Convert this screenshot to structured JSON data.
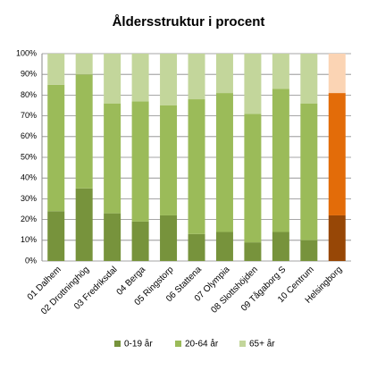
{
  "chart_data": {
    "type": "stacked-bar",
    "title": "Åldersstruktur i procent",
    "categories": [
      "01 Dalhem",
      "02 Drottninghög",
      "03 Fredriksdal",
      "04 Berga",
      "05 Ringstorp",
      "06 Stattena",
      "07 Olympia",
      "08 Slottshöjden",
      "09 Tågaborg S",
      "10 Centrum",
      "Helsingborg"
    ],
    "series": [
      {
        "name": "0-19 år",
        "color": "#77933c",
        "point_colors": [
          "#77933c",
          "#77933c",
          "#77933c",
          "#77933c",
          "#77933c",
          "#77933c",
          "#77933c",
          "#77933c",
          "#77933c",
          "#77933c",
          "#974706"
        ],
        "values": [
          24,
          35,
          23,
          19,
          22,
          13,
          14,
          9,
          14,
          10,
          22
        ]
      },
      {
        "name": "20-64 år",
        "color": "#9bbb59",
        "point_colors": [
          "#9bbb59",
          "#9bbb59",
          "#9bbb59",
          "#9bbb59",
          "#9bbb59",
          "#9bbb59",
          "#9bbb59",
          "#9bbb59",
          "#9bbb59",
          "#9bbb59",
          "#e36c09"
        ],
        "values": [
          61,
          55,
          53,
          58,
          53,
          65,
          67,
          62,
          69,
          66,
          59
        ]
      },
      {
        "name": "65+ år",
        "color": "#c3d69b",
        "point_colors": [
          "#c3d69b",
          "#c3d69b",
          "#c3d69b",
          "#c3d69b",
          "#c3d69b",
          "#c3d69b",
          "#c3d69b",
          "#c3d69b",
          "#c3d69b",
          "#c3d69b",
          "#fbd4b4"
        ],
        "values": [
          15,
          10,
          24,
          23,
          25,
          22,
          19,
          29,
          17,
          24,
          19
        ]
      }
    ],
    "ylim": [
      0,
      100
    ],
    "yticks": [
      {
        "value": 0,
        "label": "0%"
      },
      {
        "value": 10,
        "label": "10%"
      },
      {
        "value": 20,
        "label": "20%"
      },
      {
        "value": 30,
        "label": "30%"
      },
      {
        "value": 40,
        "label": "40%"
      },
      {
        "value": 50,
        "label": "50%"
      },
      {
        "value": 60,
        "label": "60%"
      },
      {
        "value": 70,
        "label": "70%"
      },
      {
        "value": 80,
        "label": "80%"
      },
      {
        "value": 90,
        "label": "90%"
      },
      {
        "value": 100,
        "label": "100%"
      }
    ],
    "grid": true,
    "legend": "bottom"
  }
}
